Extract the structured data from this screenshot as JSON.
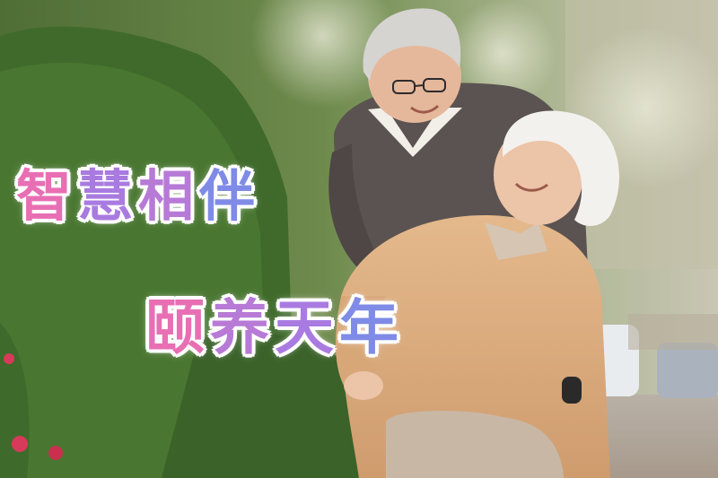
{
  "caption": {
    "line1": [
      "智",
      "慧",
      "相",
      "伴"
    ],
    "line2": [
      "颐",
      "养",
      "天",
      "年"
    ]
  },
  "colors": {
    "pink": "#e86fb3",
    "purple": "#a97be0",
    "blue": "#7f8be6",
    "outline": "#ffffff"
  },
  "photo": {
    "subject": "elderly-couple-outdoors"
  }
}
